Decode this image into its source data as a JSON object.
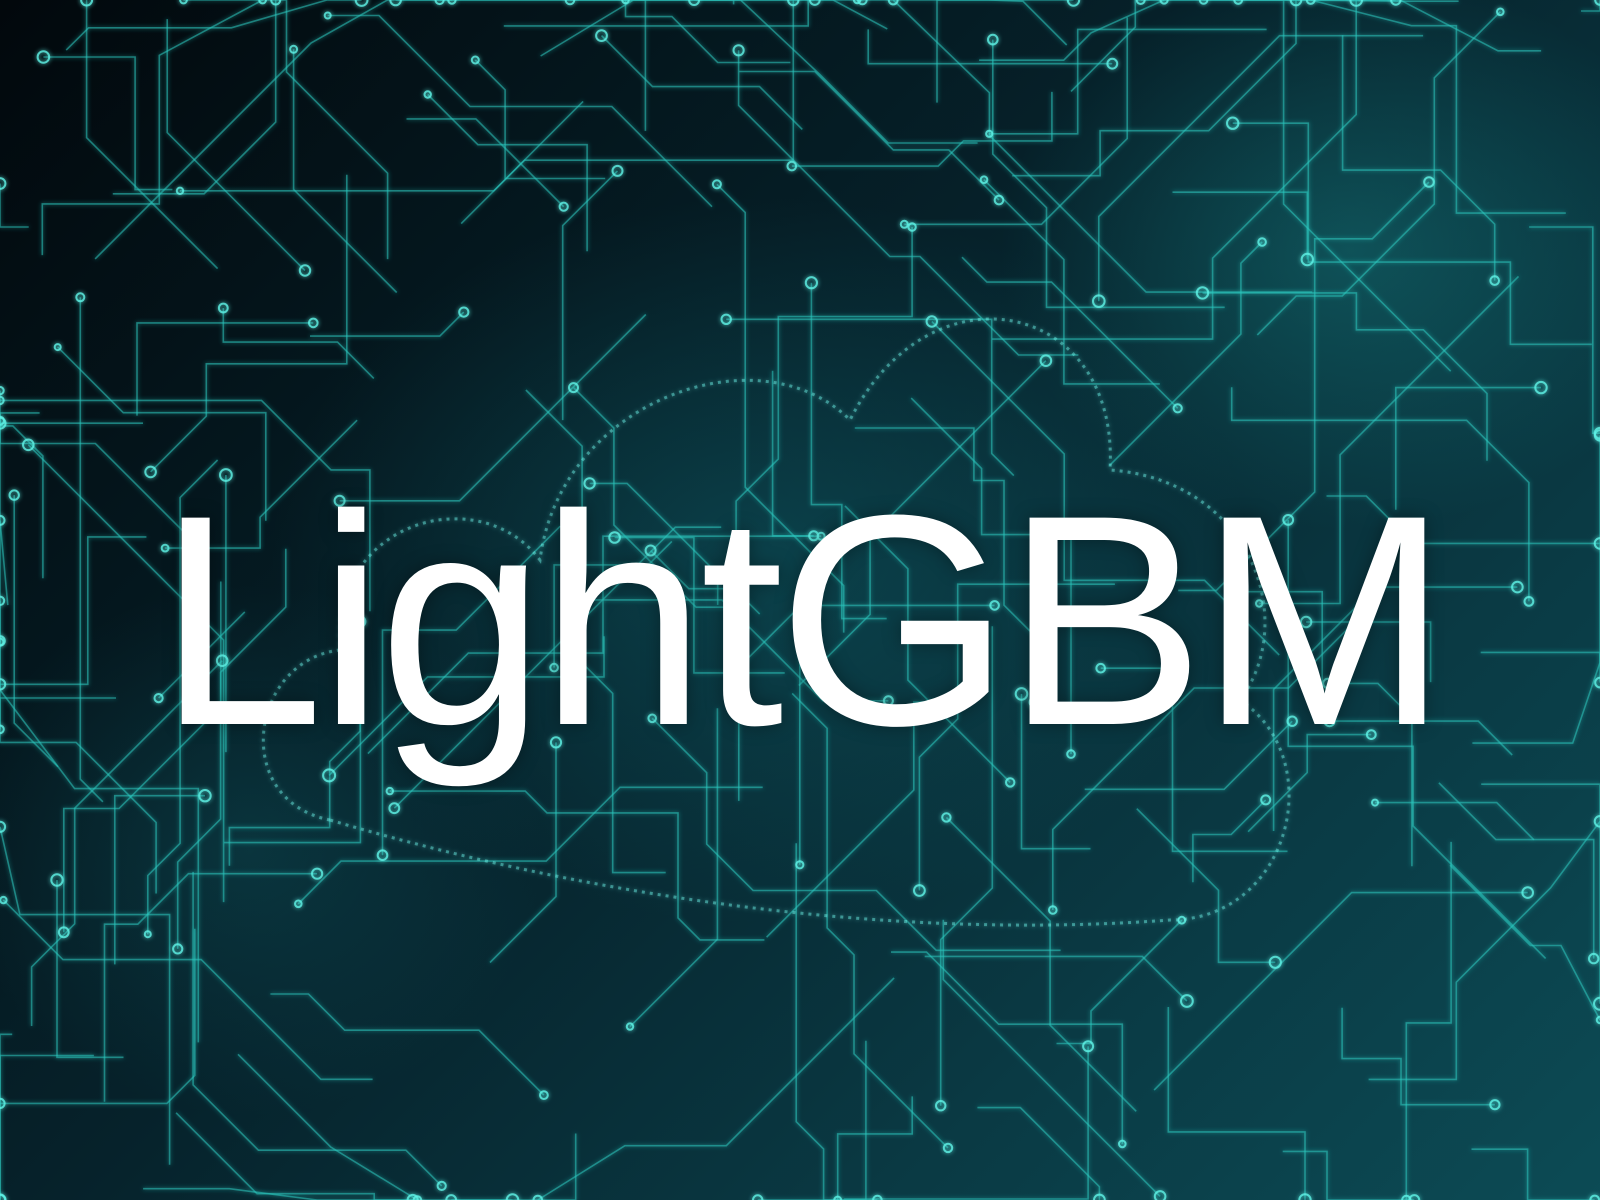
{
  "banner": {
    "title": "LightGBM",
    "text_color": "#ffffff",
    "background_color": "#041118",
    "accent_color": "#29d3c9",
    "motif": "circuit-board-cloud"
  }
}
